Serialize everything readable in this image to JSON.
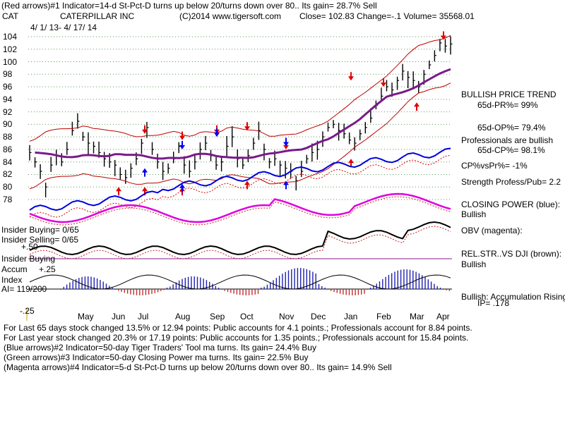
{
  "header": {
    "line1": "(Red arrows)#1 Indicator=14-d St-Pct-D turns up below 20/turns down over 80.. Its gain= 28.7% Sell",
    "ticker": "CAT",
    "company": "CATERPILLAR INC",
    "copyright": "(C)2014 www.tigersoft.com",
    "quote": "Close=  102.83  Change=-.1 Volume= 35568.01",
    "daterange": "4/ 1/ 13-  4/ 17/ 14"
  },
  "right_panel": {
    "trend_title": "BULLISH PRICE TREND",
    "pr": "65d-PR%= 99%",
    "op": "65d-OP%= 79.4%",
    "prof1": "Professionals are bullish",
    "prof2": "65d-CP%= 98.1%",
    "cpvspr": "CP%vsPr%= -1%",
    "strength": "Strength Profess/Pub= 2.2",
    "cp_title": "CLOSING POWER (blue):",
    "cp_value": "Bullish",
    "obv": "OBV (magenta):",
    "relstr": "REL.STR..VS DJI (brown):",
    "relstr_value": "Bullish",
    "accum": "Bullish: Accumulation Rising",
    "ip": "IP=  .178"
  },
  "left_panel": {
    "insider_buying": "Insider Buying= 0/65",
    "insider_selling": "Insider Selling= 0/65",
    "insider_buying2": "Insider Buying",
    "accum_index1": "Accum",
    "accum_index2": "Index",
    "ai": "AI= 119/200",
    "plus50": "+.50",
    "plus25": "+.25",
    "minus25": "-.25"
  },
  "footer": {
    "l1": "For Last 65 days stock changed  13.5% or  12.94 points:  Public accounts for  4.1 points.;  Professionals account for  8.84 points.",
    "l2": "For Last year stock changed  20.3% or  17.19 points:  Public accounts for  1.35 points.;  Professionals account for  15.84 points.",
    "l3": "(Blue arrows)#2 Indicator=50-day Tiger Traders' Tool ma turns. Its gain= 24.4% Buy",
    "l4": "(Green arrows)#3 Indicator=50-day Closing Power ma turns. Its gain= 22.5% Buy",
    "l5": "(Magenta arrows)#4 Indicator=5-d St-Pct-D turns up below 20/turns down over 80.. Its gain= 14.9% Sell"
  },
  "chart_data": {
    "type": "line",
    "y_ticks": [
      "104",
      "102",
      "100",
      "98",
      "96",
      "94",
      "92",
      "90",
      "88",
      "86",
      "84",
      "82",
      "80",
      "78"
    ],
    "ylim": [
      78,
      104
    ],
    "x_months": [
      "May",
      "Jun",
      "Jul",
      "Aug",
      "Sep",
      "Oct",
      "Nov",
      "Dec",
      "Jan",
      "Feb",
      "Mar",
      "Apr"
    ],
    "series": [
      {
        "name": "CLOSING POWER (blue)",
        "color": "#0000dd"
      },
      {
        "name": "OBV (magenta)",
        "color": "#e000e0"
      },
      {
        "name": "REL.STR..VS DJI (brown)",
        "color": "#000000"
      }
    ],
    "price_closes": [
      85.5,
      84.0,
      82.5,
      80.0,
      83.5,
      85.0,
      84.0,
      86.0,
      89.0,
      90.5,
      88.0,
      87.0,
      86.5,
      85.5,
      84.5,
      84.0,
      83.5,
      82.0,
      81.5,
      83.0,
      84.5,
      87.0,
      89.5,
      86.0,
      84.0,
      82.5,
      83.0,
      84.5,
      86.5,
      83.5,
      82.5,
      84.0,
      86.0,
      87.0,
      85.0,
      83.5,
      84.0,
      86.5,
      88.0,
      84.5,
      83.5,
      85.0,
      87.0,
      89.0,
      86.0,
      84.0,
      84.5,
      83.5,
      83.0,
      82.5,
      81.0,
      82.5,
      84.5,
      85.5,
      86.0,
      88.0,
      89.5,
      90.0,
      89.0,
      88.5,
      87.5,
      87.0,
      88.5,
      89.5,
      91.0,
      93.0,
      94.5,
      96.0,
      95.5,
      97.0,
      98.5,
      97.5,
      97.0,
      96.0,
      98.0,
      99.5,
      101.0,
      103.0,
      102.5,
      102.83
    ],
    "arrows": {
      "red_down": [
        [
          "Jul",
          88.5
        ],
        [
          "Aug",
          87.5
        ],
        [
          "Sep",
          88.5
        ],
        [
          "Oct",
          89
        ],
        [
          "Nov",
          86
        ],
        [
          "Jan",
          97
        ],
        [
          "Feb",
          96
        ],
        [
          "Apr",
          103.5
        ]
      ],
      "red_up": [
        [
          "Jun",
          80
        ],
        [
          "Jul",
          80
        ],
        [
          "Aug",
          80
        ],
        [
          "Oct",
          81
        ],
        [
          "Jan",
          84.5
        ],
        [
          "Mar",
          93.5
        ]
      ],
      "blue_down": [
        [
          "Aug",
          86
        ],
        [
          "Sep",
          88
        ],
        [
          "Nov",
          86.5
        ]
      ],
      "blue_up": [
        [
          "Jul",
          83
        ],
        [
          "Aug",
          80.5
        ],
        [
          "Nov",
          81
        ]
      ]
    }
  }
}
